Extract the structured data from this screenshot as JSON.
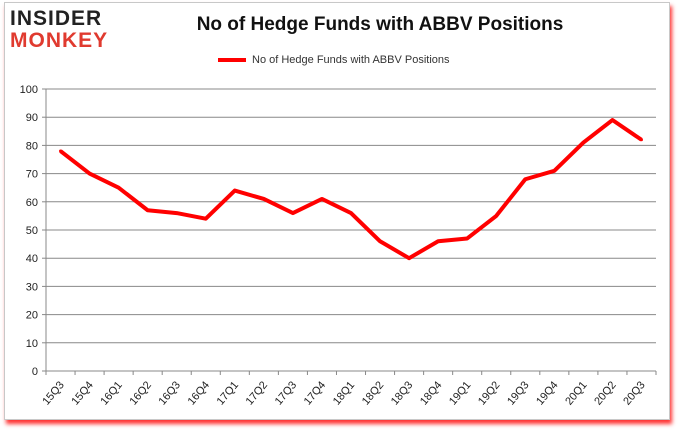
{
  "logo": {
    "line1": "INSIDER",
    "line2": "MONKEY"
  },
  "chart_data": {
    "type": "line",
    "title": "No of Hedge Funds with ABBV Positions",
    "categories": [
      "15Q3",
      "15Q4",
      "16Q1",
      "16Q2",
      "16Q3",
      "16Q4",
      "17Q1",
      "17Q2",
      "17Q3",
      "17Q4",
      "18Q1",
      "18Q2",
      "18Q3",
      "18Q4",
      "19Q1",
      "19Q2",
      "19Q3",
      "19Q4",
      "20Q1",
      "20Q2",
      "20Q3"
    ],
    "series": [
      {
        "name": "No of Hedge Funds with ABBV Positions",
        "color": "#ff0000",
        "values": [
          78,
          70,
          65,
          57,
          56,
          54,
          64,
          61,
          56,
          61,
          56,
          46,
          40,
          46,
          47,
          55,
          68,
          71,
          81,
          89,
          82
        ]
      }
    ],
    "ylim": [
      0,
      100
    ],
    "yticks": [
      0,
      10,
      20,
      30,
      40,
      50,
      60,
      70,
      80,
      90,
      100
    ],
    "grid": true,
    "legend": "top-center",
    "xlabel": "",
    "ylabel": ""
  }
}
